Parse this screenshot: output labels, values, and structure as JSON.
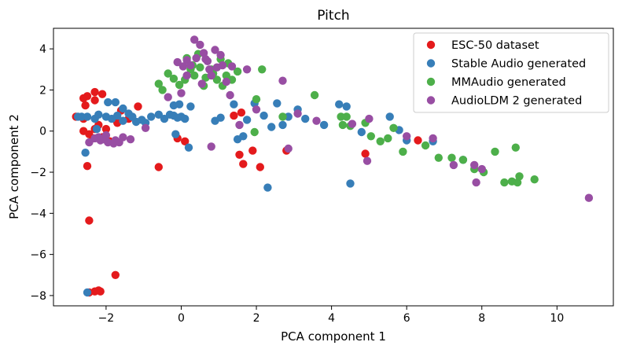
{
  "chart_data": {
    "type": "scatter",
    "title": "Pitch",
    "xlabel": "PCA component 1",
    "ylabel": "PCA component 2",
    "xlim": [
      -3.4,
      11.5
    ],
    "ylim": [
      -8.5,
      5.0
    ],
    "xticks": [
      -2,
      0,
      2,
      4,
      6,
      8,
      10
    ],
    "yticks": [
      -8,
      -6,
      -4,
      -2,
      0,
      2,
      4
    ],
    "xtick_labels": [
      "−2",
      "0",
      "2",
      "4",
      "6",
      "8",
      "10"
    ],
    "ytick_labels": [
      "−8",
      "−6",
      "−4",
      "−2",
      "0",
      "2",
      "4"
    ],
    "grid": false,
    "legend_position": "top-right",
    "series": [
      {
        "name": "ESC-50 dataset",
        "color": "#e41a1c",
        "points": [
          [
            -2.8,
            0.7
          ],
          [
            -2.6,
            1.6
          ],
          [
            -2.5,
            1.7
          ],
          [
            -2.3,
            1.9
          ],
          [
            -2.1,
            1.8
          ],
          [
            -2.3,
            1.5
          ],
          [
            -2.55,
            1.25
          ],
          [
            -2.6,
            0.0
          ],
          [
            -2.45,
            -0.15
          ],
          [
            -2.35,
            -0.35
          ],
          [
            -2.3,
            0.1
          ],
          [
            -2.2,
            0.3
          ],
          [
            -2.0,
            0.1
          ],
          [
            -2.1,
            -0.3
          ],
          [
            -1.9,
            -0.5
          ],
          [
            -1.7,
            0.4
          ],
          [
            -1.6,
            1.0
          ],
          [
            -1.4,
            0.6
          ],
          [
            -1.15,
            1.2
          ],
          [
            -2.5,
            -1.7
          ],
          [
            -2.45,
            -4.35
          ],
          [
            -1.75,
            -7.0
          ],
          [
            -2.45,
            -7.85
          ],
          [
            -2.3,
            -7.8
          ],
          [
            -2.2,
            -7.75
          ],
          [
            -2.15,
            -7.8
          ],
          [
            -0.6,
            -1.75
          ],
          [
            -0.1,
            -0.35
          ],
          [
            0.1,
            -0.5
          ],
          [
            1.4,
            0.75
          ],
          [
            1.55,
            -1.15
          ],
          [
            1.6,
            0.9
          ],
          [
            1.65,
            -1.6
          ],
          [
            1.9,
            -0.95
          ],
          [
            2.1,
            -1.75
          ],
          [
            2.8,
            -0.95
          ],
          [
            4.9,
            -1.1
          ],
          [
            6.3,
            -0.45
          ],
          [
            -2.6,
            0.6
          ]
        ]
      },
      {
        "name": "Stable Audio generated",
        "color": "#377eb8",
        "points": [
          [
            -2.75,
            0.7
          ],
          [
            -2.65,
            0.7
          ],
          [
            -2.5,
            0.7
          ],
          [
            -2.3,
            0.6
          ],
          [
            -2.2,
            0.8
          ],
          [
            -2.0,
            0.7
          ],
          [
            -1.85,
            0.6
          ],
          [
            -1.7,
            0.75
          ],
          [
            -1.55,
            0.5
          ],
          [
            -1.4,
            0.85
          ],
          [
            -1.3,
            0.7
          ],
          [
            -1.2,
            0.45
          ],
          [
            -1.05,
            0.55
          ],
          [
            -0.95,
            0.4
          ],
          [
            -0.8,
            0.7
          ],
          [
            -0.6,
            0.8
          ],
          [
            -0.45,
            0.6
          ],
          [
            -0.3,
            0.8
          ],
          [
            -0.2,
            0.75
          ],
          [
            -0.1,
            0.65
          ],
          [
            0.0,
            0.7
          ],
          [
            0.1,
            0.6
          ],
          [
            0.25,
            1.2
          ],
          [
            -0.2,
            1.25
          ],
          [
            -0.05,
            1.3
          ],
          [
            -1.95,
            1.4
          ],
          [
            -1.75,
            1.4
          ],
          [
            -1.55,
            1.1
          ],
          [
            -2.25,
            0.1
          ],
          [
            -2.55,
            -1.05
          ],
          [
            -2.5,
            -7.85
          ],
          [
            -0.15,
            -0.15
          ],
          [
            0.2,
            -0.8
          ],
          [
            0.9,
            0.5
          ],
          [
            1.05,
            0.65
          ],
          [
            1.4,
            1.3
          ],
          [
            1.5,
            -0.4
          ],
          [
            1.65,
            -0.25
          ],
          [
            1.75,
            0.55
          ],
          [
            1.95,
            1.35
          ],
          [
            2.2,
            0.75
          ],
          [
            2.3,
            -2.75
          ],
          [
            2.4,
            0.2
          ],
          [
            2.55,
            1.35
          ],
          [
            2.7,
            0.3
          ],
          [
            2.85,
            0.7
          ],
          [
            3.1,
            1.05
          ],
          [
            3.3,
            0.6
          ],
          [
            3.8,
            0.3
          ],
          [
            4.2,
            1.3
          ],
          [
            4.4,
            1.2
          ],
          [
            4.5,
            -2.55
          ],
          [
            4.8,
            -0.05
          ],
          [
            5.55,
            0.7
          ],
          [
            5.8,
            0.05
          ],
          [
            6.0,
            -0.45
          ],
          [
            6.7,
            -0.5
          ],
          [
            7.5,
            -1.4
          ]
        ]
      },
      {
        "name": "MMAudio generated",
        "color": "#4daf4a",
        "points": [
          [
            -0.6,
            2.3
          ],
          [
            -0.5,
            2.0
          ],
          [
            -0.35,
            2.8
          ],
          [
            -0.2,
            2.55
          ],
          [
            -0.05,
            2.25
          ],
          [
            0.1,
            2.5
          ],
          [
            0.25,
            3.0
          ],
          [
            0.35,
            2.7
          ],
          [
            0.5,
            3.1
          ],
          [
            0.65,
            2.6
          ],
          [
            0.8,
            3.0
          ],
          [
            0.95,
            2.5
          ],
          [
            1.1,
            2.2
          ],
          [
            1.2,
            2.7
          ],
          [
            1.25,
            3.3
          ],
          [
            1.35,
            2.5
          ],
          [
            1.5,
            2.9
          ],
          [
            0.15,
            3.55
          ],
          [
            0.45,
            3.75
          ],
          [
            0.6,
            2.2
          ],
          [
            0.85,
            2.8
          ],
          [
            1.05,
            3.5
          ],
          [
            0.3,
            3.2
          ],
          [
            2.0,
            1.55
          ],
          [
            2.15,
            3.0
          ],
          [
            2.7,
            0.7
          ],
          [
            3.55,
            1.75
          ],
          [
            4.25,
            0.7
          ],
          [
            4.4,
            0.7
          ],
          [
            4.5,
            0.25
          ],
          [
            4.9,
            0.4
          ],
          [
            5.05,
            -0.25
          ],
          [
            5.3,
            -0.5
          ],
          [
            5.5,
            -0.35
          ],
          [
            5.65,
            0.15
          ],
          [
            5.9,
            -1.0
          ],
          [
            6.5,
            -0.7
          ],
          [
            6.85,
            -1.3
          ],
          [
            7.2,
            -1.3
          ],
          [
            7.5,
            -1.4
          ],
          [
            7.8,
            -1.85
          ],
          [
            8.05,
            -2.0
          ],
          [
            8.35,
            -1.0
          ],
          [
            8.6,
            -2.5
          ],
          [
            8.8,
            -2.45
          ],
          [
            8.95,
            -2.5
          ],
          [
            9.0,
            -2.2
          ],
          [
            9.4,
            -2.35
          ],
          [
            8.9,
            -0.8
          ],
          [
            1.95,
            -0.05
          ],
          [
            4.3,
            0.3
          ]
        ]
      },
      {
        "name": "AudioLDM 2 generated",
        "color": "#984ea3",
        "points": [
          [
            -2.45,
            -0.55
          ],
          [
            -2.3,
            -0.35
          ],
          [
            -2.15,
            -0.45
          ],
          [
            -2.05,
            -0.4
          ],
          [
            -1.95,
            -0.55
          ],
          [
            -1.8,
            -0.6
          ],
          [
            -1.65,
            -0.55
          ],
          [
            -1.55,
            -0.3
          ],
          [
            -1.35,
            -0.4
          ],
          [
            -2.2,
            -0.3
          ],
          [
            -1.75,
            -0.45
          ],
          [
            -2.0,
            -0.2
          ],
          [
            -0.95,
            0.15
          ],
          [
            -0.35,
            1.65
          ],
          [
            0.0,
            1.85
          ],
          [
            0.15,
            3.45
          ],
          [
            0.25,
            3.2
          ],
          [
            0.35,
            4.45
          ],
          [
            0.5,
            4.2
          ],
          [
            0.6,
            3.8
          ],
          [
            0.7,
            3.4
          ],
          [
            0.75,
            3.0
          ],
          [
            0.8,
            2.7
          ],
          [
            0.9,
            3.95
          ],
          [
            1.05,
            3.7
          ],
          [
            1.1,
            3.2
          ],
          [
            1.2,
            2.4
          ],
          [
            1.3,
            1.75
          ],
          [
            0.55,
            2.3
          ],
          [
            -0.1,
            3.35
          ],
          [
            0.05,
            3.15
          ],
          [
            0.4,
            3.55
          ],
          [
            0.65,
            3.5
          ],
          [
            0.95,
            3.1
          ],
          [
            1.35,
            3.15
          ],
          [
            1.75,
            3.0
          ],
          [
            2.0,
            1.05
          ],
          [
            2.7,
            2.45
          ],
          [
            1.55,
            0.3
          ],
          [
            0.8,
            -0.75
          ],
          [
            2.85,
            -0.85
          ],
          [
            3.1,
            0.85
          ],
          [
            3.6,
            0.5
          ],
          [
            4.55,
            0.35
          ],
          [
            4.95,
            -1.45
          ],
          [
            5.0,
            0.6
          ],
          [
            6.0,
            -0.25
          ],
          [
            6.7,
            -0.35
          ],
          [
            7.25,
            -1.65
          ],
          [
            7.8,
            -1.65
          ],
          [
            8.0,
            -1.85
          ],
          [
            7.85,
            -2.5
          ],
          [
            10.85,
            -3.25
          ],
          [
            0.15,
            2.7
          ]
        ]
      }
    ]
  }
}
